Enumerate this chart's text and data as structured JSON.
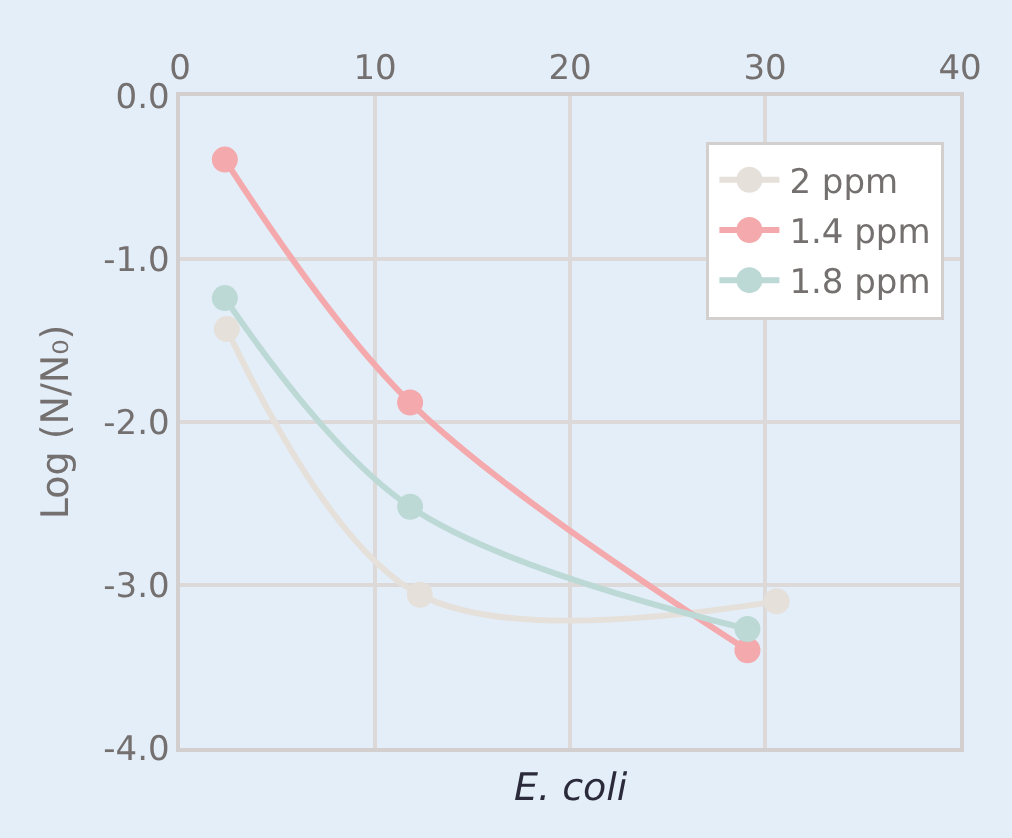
{
  "chart_data": {
    "type": "line",
    "xlabel": "E. coli",
    "ylabel": "Log (N/N₀)",
    "xlim": [
      0,
      40
    ],
    "xticks": [
      0,
      10,
      20,
      30,
      40
    ],
    "ylim": [
      -4,
      0
    ],
    "yticks": [
      {
        "value": 0,
        "label": "0.0"
      },
      {
        "value": -1,
        "label": "-1.0"
      },
      {
        "value": -2,
        "label": "-2.0"
      },
      {
        "value": -3,
        "label": "-3.0"
      },
      {
        "value": -4,
        "label": "-4.0"
      }
    ],
    "grid": true,
    "legend": "top right",
    "marker": "circle",
    "series": [
      {
        "name": "2 ppm",
        "color": "#e6e0db",
        "x": [
          2.4,
          12.3,
          30.6
        ],
        "values": [
          -1.43,
          -3.06,
          -3.1
        ]
      },
      {
        "name": "1.4 ppm",
        "color": "#f4a9ad",
        "x": [
          2.3,
          11.8,
          29.1
        ],
        "values": [
          -0.39,
          -1.88,
          -3.4
        ]
      },
      {
        "name": "1.8 ppm",
        "color": "#bcd9d6",
        "x": [
          2.3,
          11.8,
          29.1
        ],
        "values": [
          -1.24,
          -2.52,
          -3.27
        ]
      }
    ]
  }
}
